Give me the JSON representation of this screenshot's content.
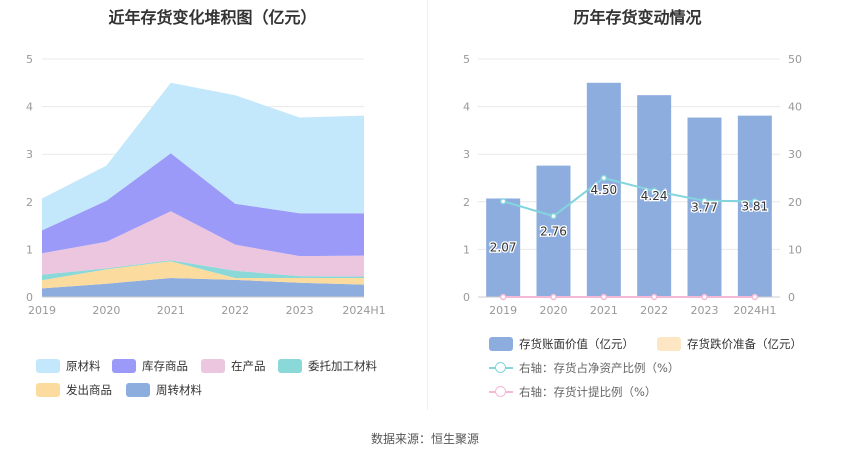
{
  "source": "数据来源：恒生聚源",
  "chart_data": [
    {
      "type": "area",
      "stacked": true,
      "title": "近年存货变化堆积图（亿元）",
      "categories": [
        "2019",
        "2020",
        "2021",
        "2022",
        "2023",
        "2024H1"
      ],
      "ylim": [
        0,
        5
      ],
      "yticks": [
        0,
        1,
        2,
        3,
        4,
        5
      ],
      "grid": true,
      "legend_position": "bottom",
      "series": [
        {
          "name": "周转材料",
          "color": "#8eaddf",
          "values": [
            0.18,
            0.28,
            0.4,
            0.36,
            0.3,
            0.26
          ]
        },
        {
          "name": "发出商品",
          "color": "#fcdc9e",
          "values": [
            0.17,
            0.3,
            0.35,
            0.04,
            0.1,
            0.14
          ]
        },
        {
          "name": "委托加工材料",
          "color": "#8bd8d8",
          "values": [
            0.12,
            0.02,
            0.02,
            0.15,
            0.04,
            0.03
          ]
        },
        {
          "name": "在产品",
          "color": "#ecc6df",
          "values": [
            0.45,
            0.56,
            1.03,
            0.55,
            0.42,
            0.44
          ]
        },
        {
          "name": "库存商品",
          "color": "#9b9af8",
          "values": [
            0.48,
            0.86,
            1.22,
            0.86,
            0.9,
            0.89
          ]
        },
        {
          "name": "原材料",
          "color": "#c3e8fb",
          "values": [
            0.67,
            0.74,
            1.48,
            2.28,
            2.01,
            2.05
          ]
        }
      ]
    },
    {
      "type": "bar",
      "title": "历年存货变动情况",
      "categories": [
        "2019",
        "2020",
        "2021",
        "2022",
        "2023",
        "2024H1"
      ],
      "ylim": [
        0,
        5
      ],
      "yticks": [
        0,
        1,
        2,
        3,
        4,
        5
      ],
      "y2lim": [
        0,
        50
      ],
      "y2ticks": [
        0,
        10,
        20,
        30,
        40,
        50
      ],
      "grid": true,
      "legend_position": "bottom",
      "series": [
        {
          "name": "存货账面价值（亿元）",
          "type": "bar",
          "axis": "left",
          "color": "#8eaddf",
          "values": [
            2.07,
            2.76,
            4.5,
            4.24,
            3.77,
            3.81
          ],
          "labels": [
            "2.07",
            "2.76",
            "4.50",
            "4.24",
            "3.77",
            "3.81"
          ]
        },
        {
          "name": "存货跌价准备（亿元）",
          "type": "bar",
          "axis": "left",
          "color": "#fde6c4",
          "values": [
            0,
            0,
            0,
            0,
            0,
            0
          ]
        },
        {
          "name": "右轴：存货占净资产比例（%）",
          "type": "line",
          "axis": "right",
          "color": "#83d5dd",
          "values": [
            20.1,
            17.0,
            25.0,
            22.3,
            20.2,
            20.1
          ]
        },
        {
          "name": "右轴：存货计提比例（%）",
          "type": "line",
          "axis": "right",
          "color": "#f3b9d7",
          "values": [
            0,
            0,
            0,
            0,
            0,
            0
          ]
        }
      ]
    }
  ]
}
